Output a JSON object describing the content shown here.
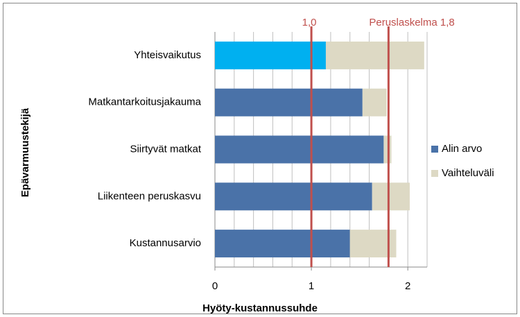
{
  "chart_data": {
    "type": "stacked_barh",
    "xlabel": "Hyöty-kustannussuhde",
    "ylabel": "Epävarmuustekijä",
    "categories": [
      "Yhteisvaikutus",
      "Matkantarkoitusjakauma",
      "Siirtyvät matkat",
      "Liikenteen peruskasvu",
      "Kustannusarvio"
    ],
    "series": [
      {
        "name": "Alin arvo",
        "color": "#4a72a8",
        "colors": [
          "#00b0f0",
          "#4a72a8",
          "#4a72a8",
          "#4a72a8",
          "#4a72a8"
        ],
        "values": [
          1.15,
          1.53,
          1.75,
          1.63,
          1.4
        ]
      },
      {
        "name": "Vaihteluväli",
        "color": "#ddd9c4",
        "values": [
          1.02,
          0.25,
          0.08,
          0.39,
          0.48
        ]
      }
    ],
    "xlim": [
      0,
      2.2
    ],
    "xticks": [
      0,
      1,
      2
    ],
    "xgrid": [
      0.2,
      0.4,
      0.6,
      0.8,
      1,
      1.2,
      1.4,
      1.6,
      1.8,
      2,
      2.2
    ],
    "reference_lines": [
      {
        "value": 1.0,
        "label": "1,0",
        "color": "#c0504d"
      },
      {
        "value": 1.8,
        "label": "Peruslaskelma 1,8",
        "color": "#c0504d"
      }
    ],
    "legend": "right"
  }
}
